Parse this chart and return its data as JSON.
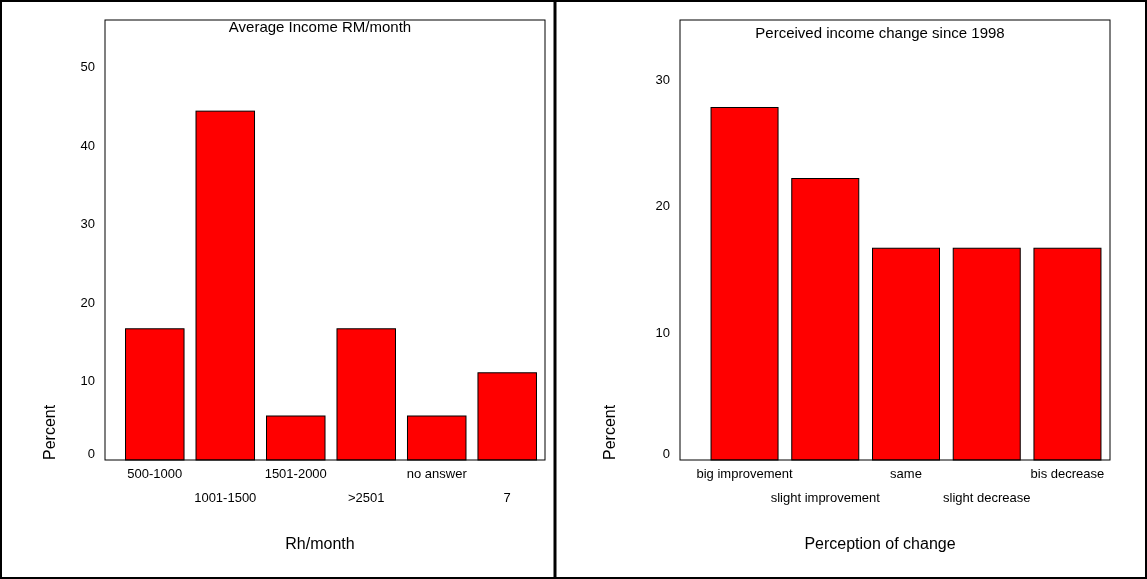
{
  "chart_data": [
    {
      "type": "bar",
      "title": "Average Income  RM/month",
      "xlabel": "Rh/month",
      "ylabel": "Percent",
      "categories": [
        "500-1000",
        "1001-1500",
        "1501-2000",
        ">2501",
        "no answer",
        "7"
      ],
      "values": [
        16.7,
        44.4,
        5.6,
        16.7,
        5.6,
        11.1
      ],
      "color": "#ff0000",
      "ylim": [
        0,
        56
      ],
      "yticks": [
        0,
        10,
        20,
        30,
        40,
        50
      ],
      "grid": false
    },
    {
      "type": "bar",
      "title": "Perceived income change since 1998",
      "xlabel": "Perception of change",
      "ylabel": "Percent",
      "categories": [
        "big improvement",
        "slight improvement",
        "same",
        "slight decrease",
        "bis decrease"
      ],
      "values": [
        27.8,
        22.2,
        16.7,
        16.7,
        16.7
      ],
      "color": "#ff0000",
      "ylim": [
        0,
        34.7
      ],
      "yticks": [
        0,
        10,
        20,
        30
      ],
      "grid": false
    }
  ]
}
